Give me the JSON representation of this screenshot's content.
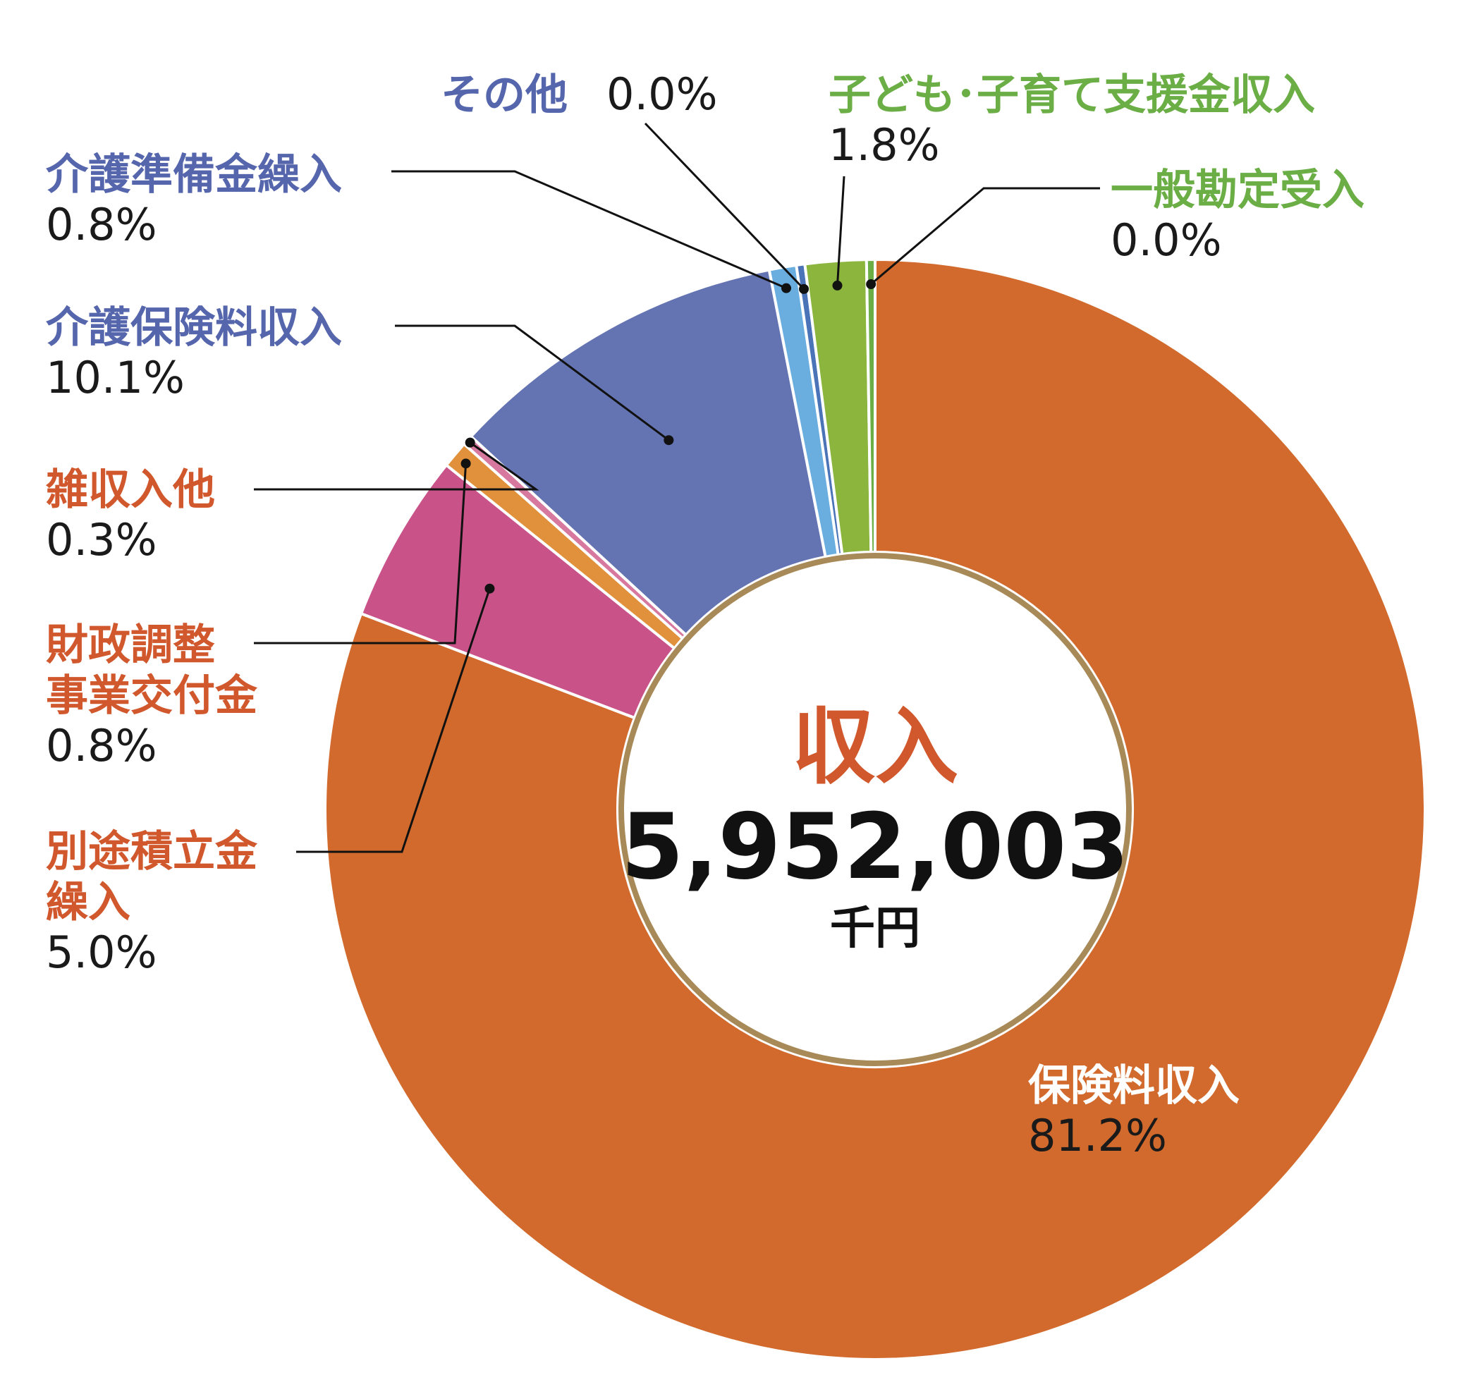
{
  "chart_data": {
    "type": "pie",
    "center": {
      "title": "収入",
      "value": "5,952,003",
      "unit": "千円"
    },
    "series": [
      {
        "name": "保険料収入",
        "name_lines": [
          "保険料収入"
        ],
        "value": 81.2,
        "value_label": "81.2%",
        "color": "#d16a2c",
        "label_color": "#ffffff"
      },
      {
        "name": "別途積立金繰入",
        "name_lines": [
          "別途積立金",
          "繰入"
        ],
        "value": 5.0,
        "value_label": "5.0%",
        "color": "#c95389",
        "label_color": "#d1572c"
      },
      {
        "name": "財政調整事業交付金",
        "name_lines": [
          "財政調整",
          "事業交付金"
        ],
        "value": 0.8,
        "value_label": "0.8%",
        "color": "#e1913c",
        "label_color": "#d1572c"
      },
      {
        "name": "雑収入他",
        "name_lines": [
          "雑収入他"
        ],
        "value": 0.3,
        "value_label": "0.3%",
        "color": "#d7789e",
        "label_color": "#d1572c"
      },
      {
        "name": "介護保険料収入",
        "name_lines": [
          "介護保険料収入"
        ],
        "value": 10.1,
        "value_label": "10.1%",
        "color": "#6474b2",
        "label_color": "#5566ad"
      },
      {
        "name": "介護準備金繰入",
        "name_lines": [
          "介護準備金繰入"
        ],
        "value": 0.8,
        "value_label": "0.8%",
        "color": "#6aaee0",
        "label_color": "#5566ad"
      },
      {
        "name": "その他",
        "name_lines": [
          "その他"
        ],
        "value": 0.0,
        "value_label": "0.0%",
        "color": "#4b74b8",
        "label_color": "#5566ad"
      },
      {
        "name": "子ども・子育て支援金収入",
        "name_lines": [
          "子ども･子育て支援金収入"
        ],
        "value": 1.8,
        "value_label": "1.8%",
        "color": "#8cb53e",
        "label_color": "#6aae45"
      },
      {
        "name": "一般勘定受入",
        "name_lines": [
          "一般勘定受入"
        ],
        "value": 0.0,
        "value_label": "0.0%",
        "color": "#6aae45",
        "label_color": "#6aae45"
      }
    ]
  }
}
